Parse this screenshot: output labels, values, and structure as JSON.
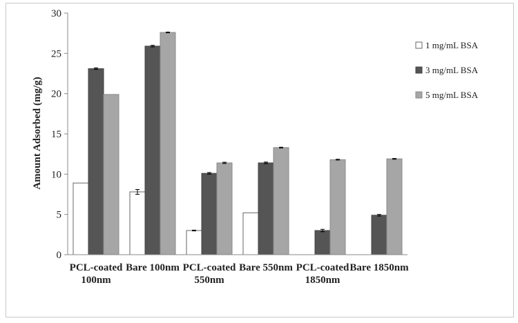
{
  "chart_data": {
    "type": "bar",
    "title": "",
    "xlabel": "",
    "ylabel": "Amount Adsorbed (mg/g)",
    "ylim": [
      0,
      30
    ],
    "yticks": [
      0,
      5,
      10,
      15,
      20,
      25,
      30
    ],
    "grid": false,
    "legend_position": "right",
    "categories": [
      [
        "PCL-coated",
        "100nm"
      ],
      [
        "Bare 100nm"
      ],
      [
        "PCL-coated",
        "550nm"
      ],
      [
        "Bare 550nm"
      ],
      [
        "PCL-coated",
        "1850nm"
      ],
      [
        "Bare 1850nm"
      ]
    ],
    "series": [
      {
        "name": "1 mg/mL BSA",
        "color": "#ffffff",
        "stroke": "#666666",
        "values": [
          8.9,
          7.8,
          3.0,
          5.2,
          0,
          0
        ],
        "errors": [
          0,
          0.3,
          0.05,
          0,
          0,
          0
        ]
      },
      {
        "name": "3 mg/mL BSA",
        "color": "#555555",
        "stroke": "#444444",
        "values": [
          23.1,
          25.9,
          10.1,
          11.4,
          3.0,
          4.9
        ],
        "errors": [
          0.1,
          0.1,
          0.1,
          0.1,
          0.15,
          0.1
        ]
      },
      {
        "name": "5 mg/mL BSA",
        "color": "#a6a6a6",
        "stroke": "#8a8a8a",
        "values": [
          19.9,
          27.6,
          11.4,
          13.3,
          11.8,
          11.9
        ],
        "errors": [
          0,
          0.05,
          0.08,
          0.05,
          0.05,
          0.05
        ]
      }
    ]
  }
}
